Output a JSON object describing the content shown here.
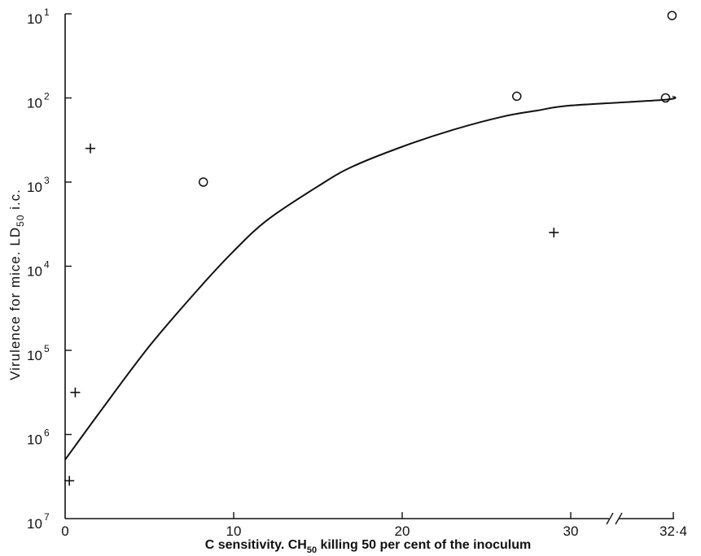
{
  "chart_data": {
    "type": "scatter",
    "xlabel": "C sensitivity. CH",
    "xlabel_sub": "50",
    "xlabel_rest": " killing 50 per cent of the inoculum",
    "ylabel": "Virulence for mice. LD",
    "ylabel_sub": "50",
    "ylabel_rest": " i.c.",
    "y_scale": "log (inverted: 10^1 at top, 10^7 at bottom)",
    "xlim": [
      0,
      32.4
    ],
    "x_axis_break": "between 30 and 32.4",
    "x_ticks": [
      {
        "value": 0,
        "label": "0"
      },
      {
        "value": 10,
        "label": "10"
      },
      {
        "value": 20,
        "label": "20"
      },
      {
        "value": 30,
        "label": "30"
      },
      {
        "value": 32.4,
        "label": "32·4"
      }
    ],
    "y_ticks": [
      {
        "exponent": 1,
        "base": "10",
        "exp_label": "1"
      },
      {
        "exponent": 2,
        "base": "10",
        "exp_label": "2"
      },
      {
        "exponent": 3,
        "base": "10",
        "exp_label": "3"
      },
      {
        "exponent": 4,
        "base": "10",
        "exp_label": "4"
      },
      {
        "exponent": 5,
        "base": "10",
        "exp_label": "5"
      },
      {
        "exponent": 6,
        "base": "10",
        "exp_label": "6"
      },
      {
        "exponent": 7,
        "base": "10",
        "exp_label": "7"
      }
    ],
    "series": [
      {
        "marker": "circle",
        "points": [
          {
            "x": 8.2,
            "y_exp": 3.0
          },
          {
            "x": 26.8,
            "y_exp": 1.98
          },
          {
            "x": 32.1,
            "y_exp": 2.0
          },
          {
            "x": 32.35,
            "y_exp": 1.02
          }
        ]
      },
      {
        "marker": "plus",
        "points": [
          {
            "x": 0.25,
            "y_exp": 6.55
          },
          {
            "x": 0.6,
            "y_exp": 5.5
          },
          {
            "x": 1.5,
            "y_exp": 2.6
          },
          {
            "x": 29.0,
            "y_exp": 3.6
          }
        ]
      }
    ],
    "fitted_curve": [
      {
        "x": 0,
        "y_exp": 6.3
      },
      {
        "x": 2,
        "y_exp": 5.75
      },
      {
        "x": 5,
        "y_exp": 4.95
      },
      {
        "x": 8,
        "y_exp": 4.25
      },
      {
        "x": 10,
        "y_exp": 3.82
      },
      {
        "x": 12,
        "y_exp": 3.45
      },
      {
        "x": 15,
        "y_exp": 3.05
      },
      {
        "x": 17,
        "y_exp": 2.82
      },
      {
        "x": 20,
        "y_exp": 2.58
      },
      {
        "x": 23,
        "y_exp": 2.38
      },
      {
        "x": 26,
        "y_exp": 2.22
      },
      {
        "x": 28,
        "y_exp": 2.15
      },
      {
        "x": 30,
        "y_exp": 2.09
      },
      {
        "x": 32.1,
        "y_exp": 2.02
      },
      {
        "x": 32.4,
        "y_exp": 1.98
      }
    ],
    "grid": false,
    "legend": "none"
  }
}
